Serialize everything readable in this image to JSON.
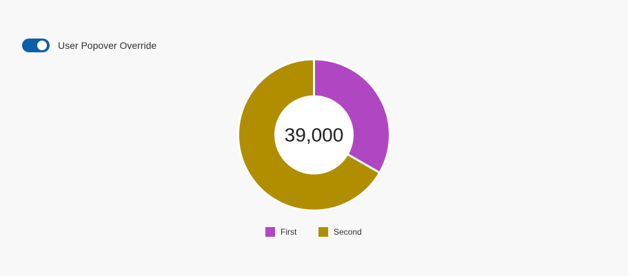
{
  "toggle": {
    "label": "User Popover Override",
    "checked": true,
    "accent": "#0f5fa8"
  },
  "chart_data": {
    "type": "pie",
    "variant": "donut",
    "center_label": "39,000",
    "categories": [
      "First",
      "Second"
    ],
    "values": [
      13000,
      26000
    ],
    "colors": [
      "#b146c2",
      "#b08e00"
    ],
    "legend": [
      "First",
      "Second"
    ],
    "legend_position": "bottom"
  }
}
